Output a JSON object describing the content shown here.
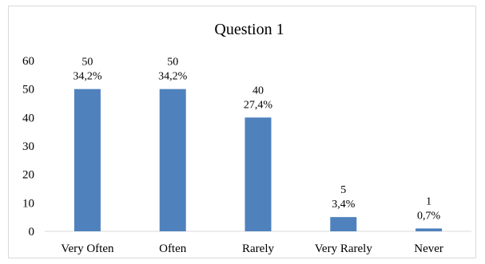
{
  "chart_data": {
    "type": "bar",
    "title": "Question 1",
    "xlabel": "",
    "ylabel": "",
    "categories": [
      "Very Often",
      "Often",
      "Rarely",
      "Very Rarely",
      "Never"
    ],
    "values": [
      50,
      50,
      40,
      5,
      1
    ],
    "percent_labels": [
      "34,2%",
      "34,2%",
      "27,4%",
      "3,4%",
      "0,7%"
    ],
    "ylim": [
      0,
      60
    ],
    "yticks": [
      0,
      10,
      20,
      30,
      40,
      50,
      60
    ],
    "grid": false,
    "legend": "none",
    "colors": {
      "bar": "#4f81bd",
      "axis": "#d9d9d9"
    }
  }
}
